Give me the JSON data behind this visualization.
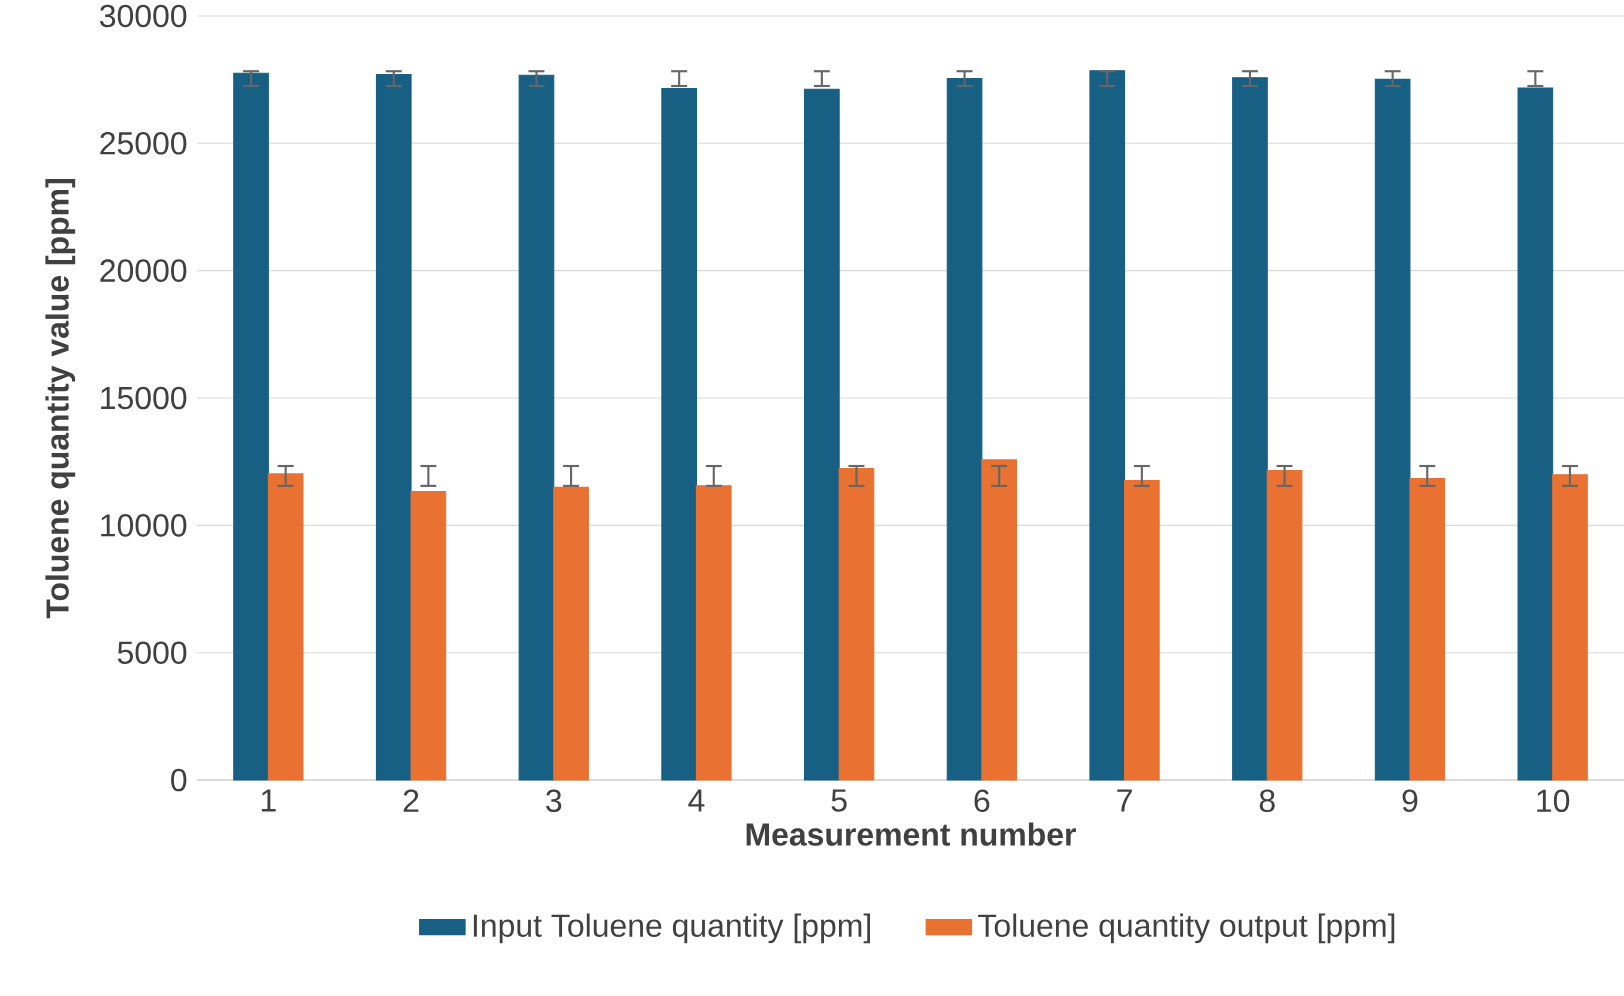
{
  "chart_data": {
    "type": "bar",
    "xlabel": "Measurement number",
    "ylabel": "Toluene quantity value [ppm]",
    "categories": [
      "1",
      "2",
      "3",
      "4",
      "5",
      "6",
      "7",
      "8",
      "9",
      "10"
    ],
    "series": [
      {
        "name": "Input Toluene quantity [ppm]",
        "color": "#185f84",
        "values": [
          27750,
          27700,
          27670,
          27150,
          27120,
          27540,
          27850,
          27570,
          27510,
          27170
        ],
        "errors": [
          [
            27250,
            27830
          ],
          [
            27250,
            27830
          ],
          [
            27250,
            27830
          ],
          [
            27250,
            27830
          ],
          [
            27250,
            27830
          ],
          [
            27250,
            27830
          ],
          [
            27250,
            27830
          ],
          [
            27250,
            27830
          ],
          [
            27250,
            27830
          ],
          [
            27250,
            27830
          ]
        ]
      },
      {
        "name": "Toluene quantity output [ppm]",
        "color": "#e97132",
        "values": [
          12020,
          11330,
          11490,
          11550,
          12230,
          12570,
          11760,
          12150,
          11840,
          11990
        ],
        "errors": [
          [
            11550,
            12330
          ],
          [
            11550,
            12330
          ],
          [
            11550,
            12330
          ],
          [
            11550,
            12330
          ],
          [
            11550,
            12330
          ],
          [
            11550,
            12330
          ],
          [
            11550,
            12330
          ],
          [
            11550,
            12330
          ],
          [
            11550,
            12330
          ],
          [
            11550,
            12330
          ]
        ]
      }
    ],
    "ylim": [
      0,
      30000
    ],
    "yticks": [
      0,
      5000,
      10000,
      15000,
      20000,
      25000,
      30000
    ],
    "grid": "y",
    "legend": "bottom"
  }
}
